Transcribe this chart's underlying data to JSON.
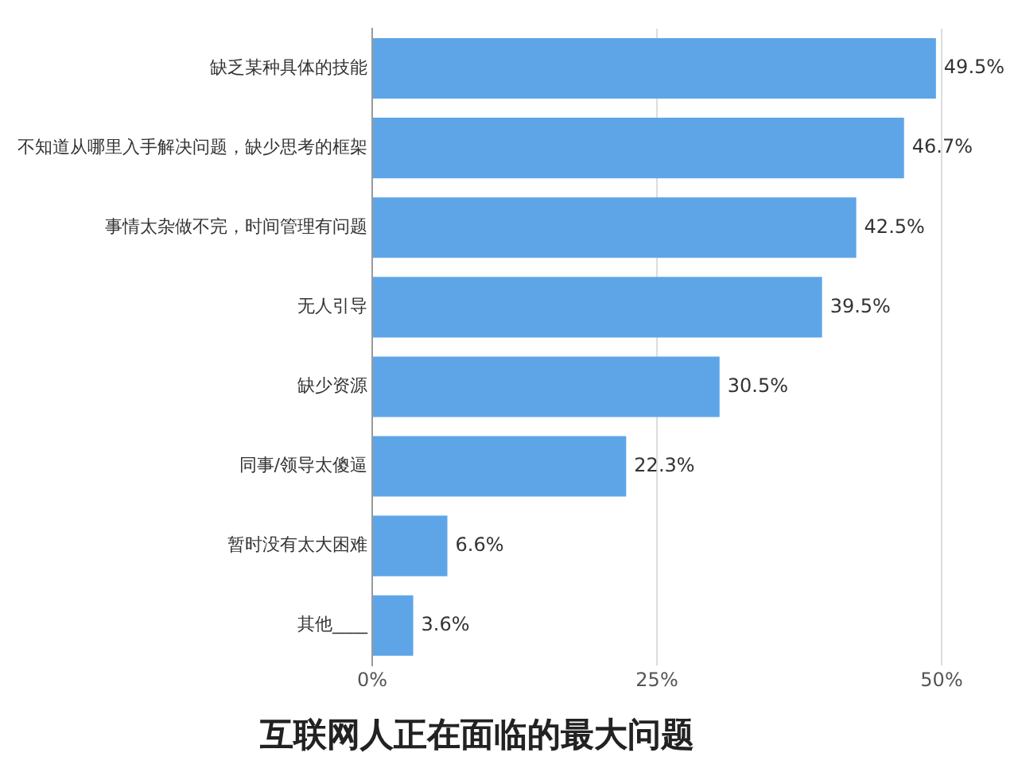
{
  "chart_data": {
    "type": "bar",
    "orientation": "horizontal",
    "title": "互联网人正在面临的最大问题",
    "categories": [
      "缺乏某种具体的技能",
      "不知道从哪里入手解决问题，缺少思考的框架",
      "事情太杂做不完，时间管理有问题",
      "无人引导",
      "缺少资源",
      "同事/领导太傻逼",
      "暂时没有太大困难",
      "其他____"
    ],
    "values": [
      49.5,
      46.7,
      42.5,
      39.5,
      30.5,
      22.3,
      6.6,
      3.6
    ],
    "value_labels": [
      "49.5%",
      "46.7%",
      "42.5%",
      "39.5%",
      "30.5%",
      "22.3%",
      "6.6%",
      "3.6%"
    ],
    "color": "#5ea5e8",
    "xlim": [
      0,
      50
    ],
    "xticks": [
      {
        "value": 0,
        "label": "0%"
      },
      {
        "value": 25,
        "label": "25%"
      },
      {
        "value": 50,
        "label": "50%"
      }
    ],
    "grid": "x",
    "legend": false
  }
}
